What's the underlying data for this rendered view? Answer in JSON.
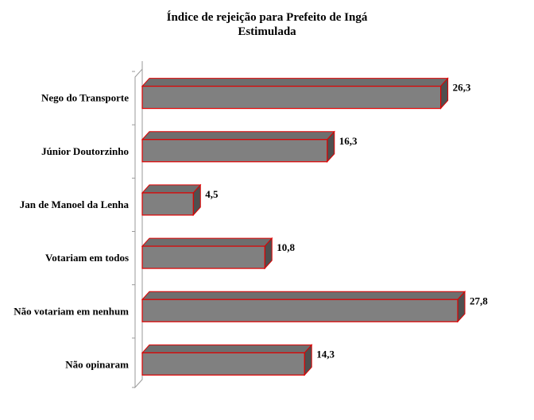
{
  "chart_data": {
    "type": "bar",
    "orientation": "horizontal",
    "style": "3d",
    "title": "Índice de rejeição para Prefeito de Ingá",
    "subtitle": "Estimulada",
    "categories": [
      "Nego do Transporte",
      "Júnior Doutorzinho",
      "Jan de Manoel da Lenha",
      "Votariam em todos",
      "Não votariam em nenhum",
      "Não opinaram"
    ],
    "values": [
      26.3,
      16.3,
      4.5,
      10.8,
      27.8,
      14.3
    ],
    "value_labels": [
      "26,3",
      "16,3",
      "4,5",
      "10,8",
      "27,8",
      "14,3"
    ],
    "xlim": [
      0,
      30
    ],
    "grid": false,
    "legend": "none",
    "colors": {
      "bar_fill": "#808080",
      "bar_top": "#6e6e6e",
      "bar_side": "#4f4f4f",
      "bar_edge": "#e00000",
      "wall": "#ffffff",
      "wall_edge": "#9a9a9a"
    }
  }
}
